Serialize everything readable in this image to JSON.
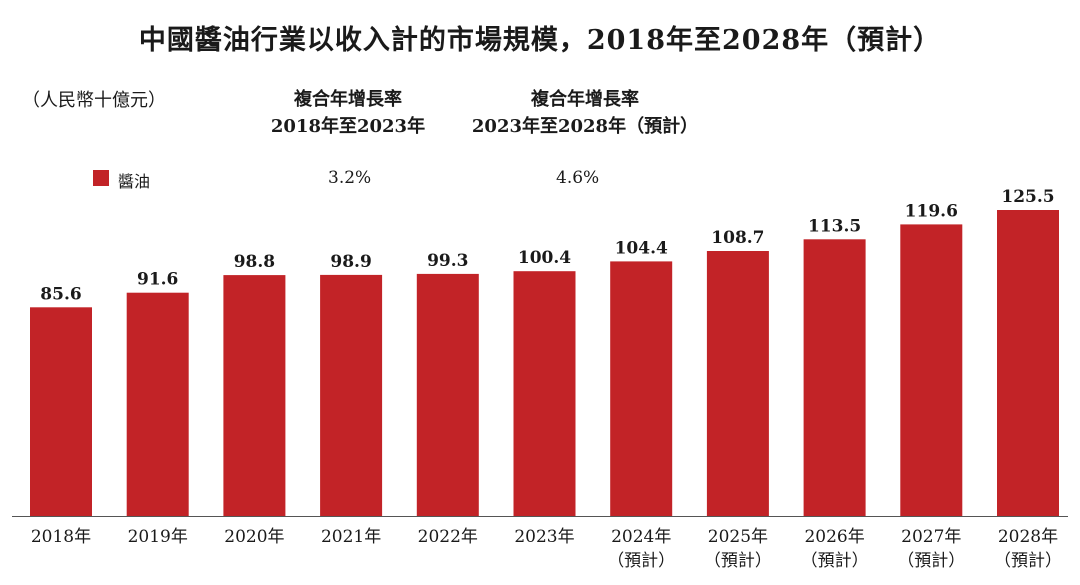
{
  "chart_data": {
    "type": "bar",
    "title": "中國醬油行業以收入計的市場規模，2018年至2028年（預計）",
    "unit_label": "（人民幣十億元）",
    "xlabel": "",
    "ylabel": "",
    "ylim": [
      0,
      125.5
    ],
    "categories": [
      "2018年",
      "2019年",
      "2020年",
      "2021年",
      "2022年",
      "2023年",
      "2024年",
      "2025年",
      "2026年",
      "2027年",
      "2028年"
    ],
    "category_sublabels": [
      "",
      "",
      "",
      "",
      "",
      "",
      "（預計）",
      "（預計）",
      "（預計）",
      "（預計）",
      "（預計）"
    ],
    "series": [
      {
        "name": "醬油",
        "color": "#c22327",
        "values": [
          85.6,
          91.6,
          98.8,
          98.9,
          99.3,
          100.4,
          104.4,
          108.7,
          113.5,
          119.6,
          125.5
        ],
        "labels": [
          "85.6",
          "91.6",
          "98.8",
          "98.9",
          "99.3",
          "100.4",
          "104.4",
          "108.7",
          "113.5",
          "119.6",
          "125.5"
        ]
      }
    ],
    "legend": {
      "label": "醬油",
      "color": "#c22327"
    },
    "cagr": [
      {
        "heading_1": "複合年增長率",
        "heading_2": "2018年至2023年",
        "value": "3.2%"
      },
      {
        "heading_1": "複合年增長率",
        "heading_2": "2023年至2028年（預計）",
        "value": "4.6%"
      }
    ]
  }
}
